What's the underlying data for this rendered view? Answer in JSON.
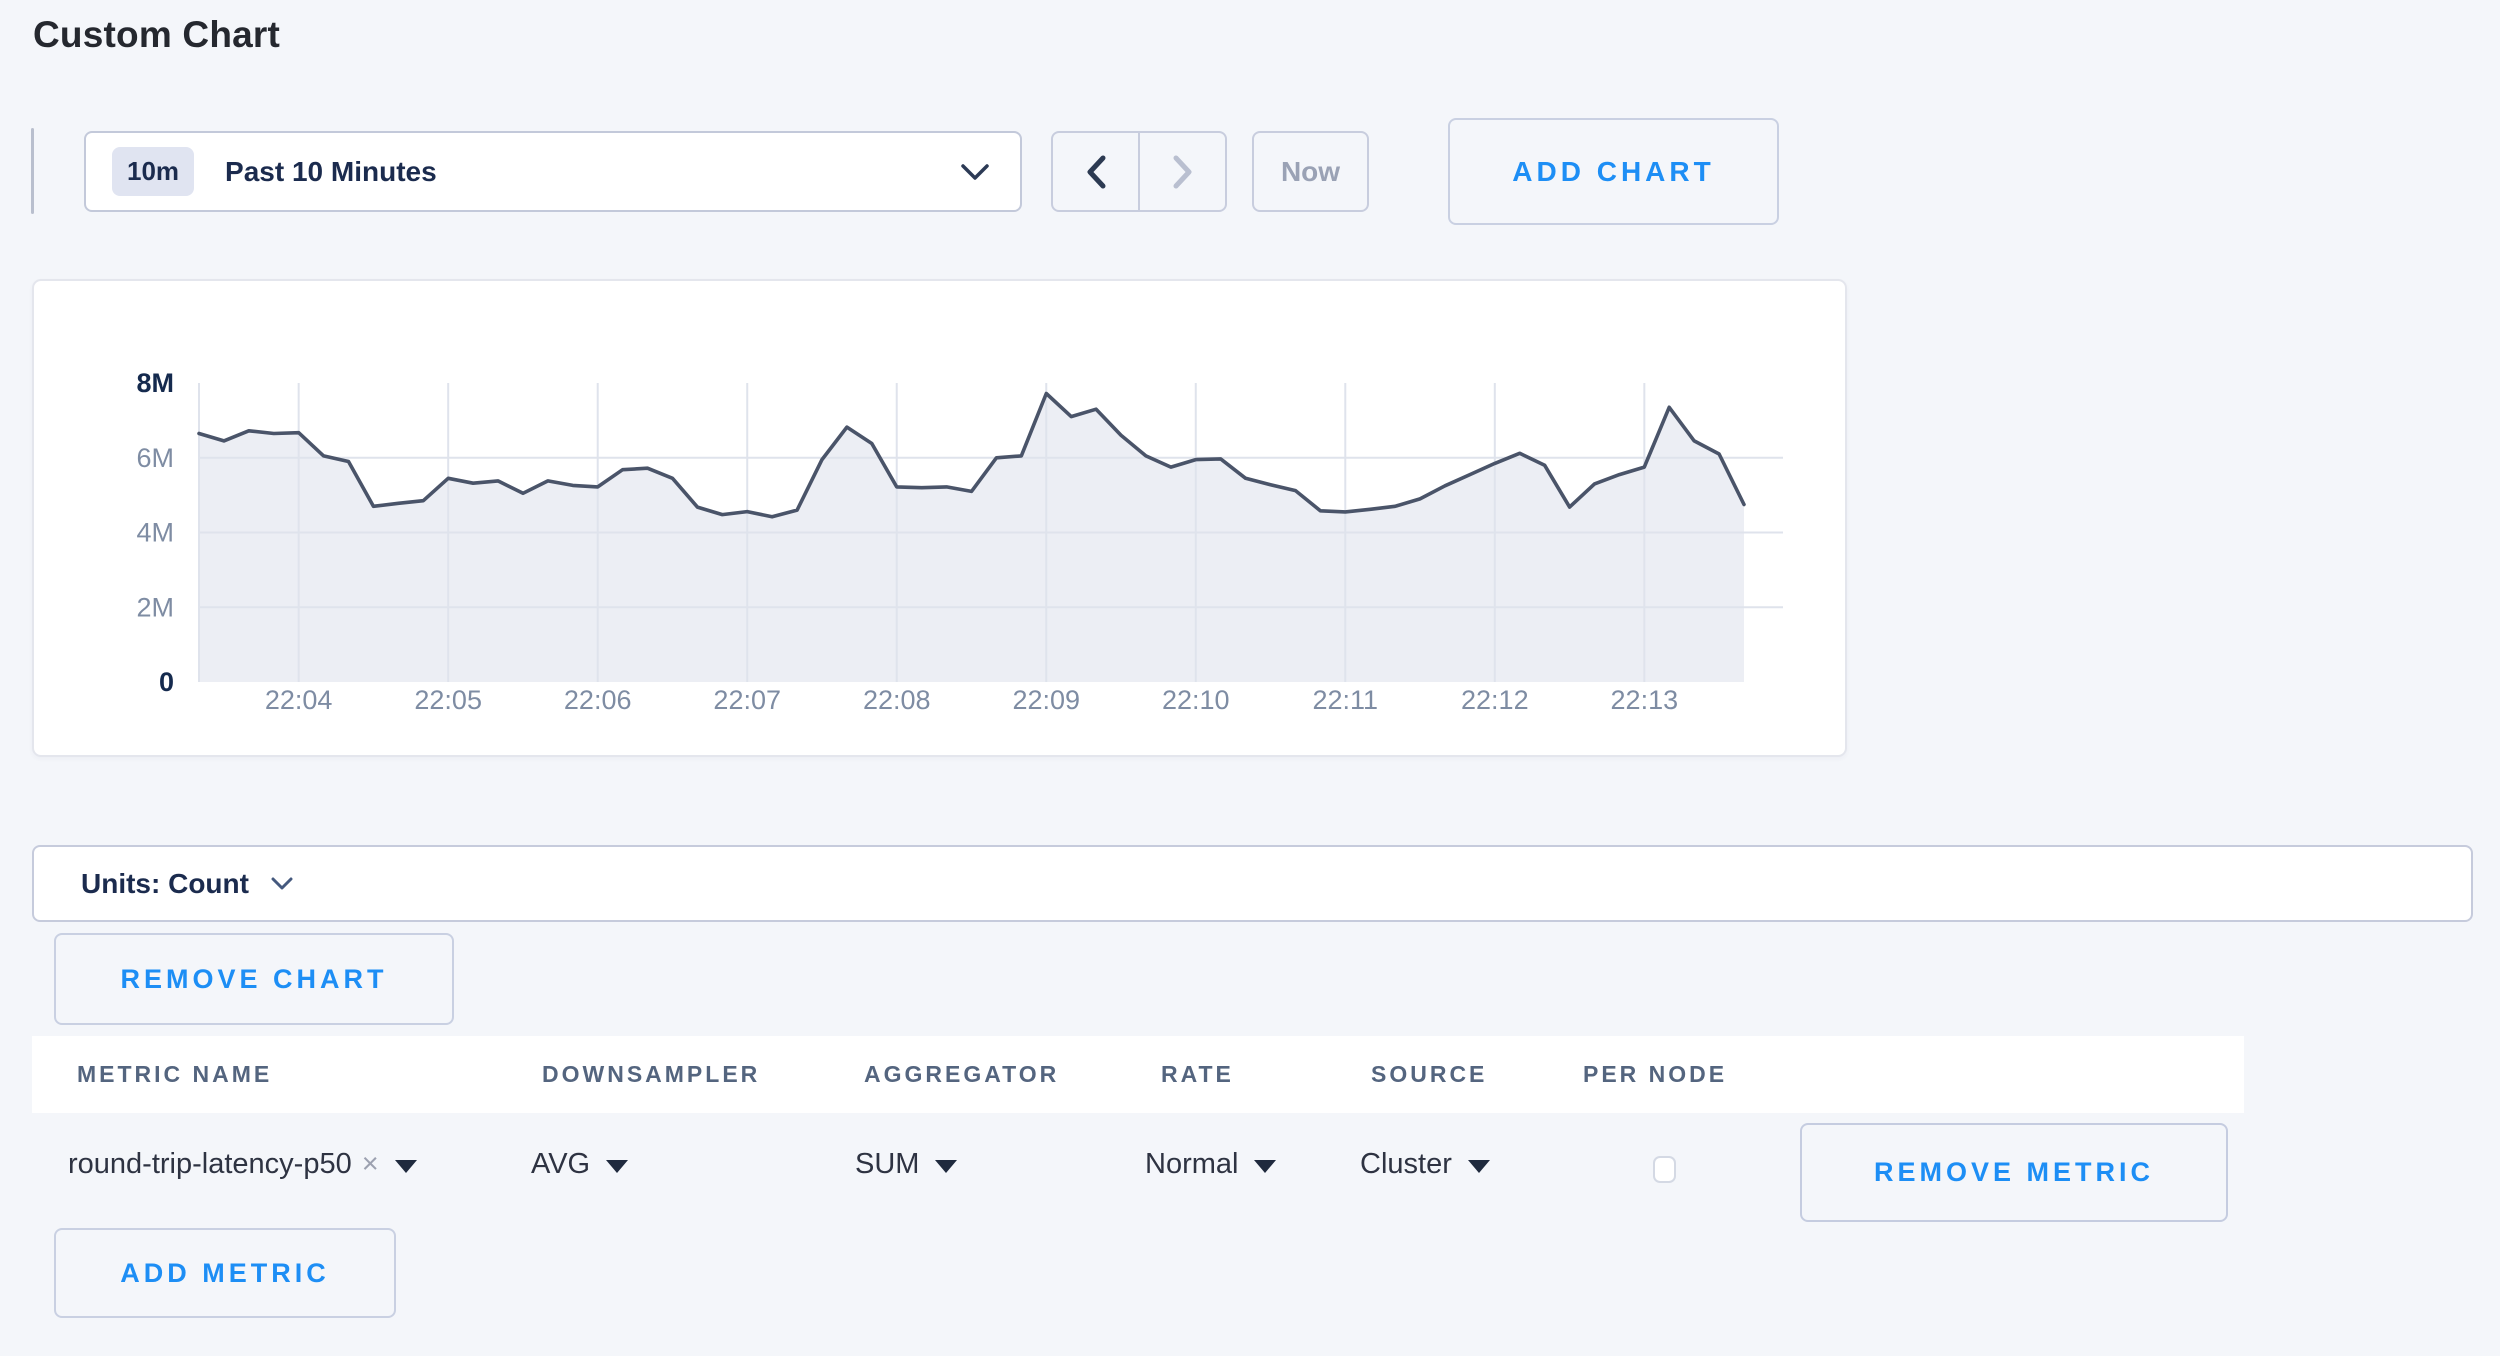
{
  "page": {
    "title": "Custom Chart"
  },
  "toolbar": {
    "time_range_badge": "10m",
    "time_range_label": "Past 10 Minutes",
    "now_label": "Now",
    "add_chart_label": "ADD CHART"
  },
  "chart_data": {
    "type": "area",
    "title": "",
    "x_start": "22:03:20",
    "x_interval_seconds": 10,
    "x_tick_labels": [
      "22:04",
      "22:05",
      "22:06",
      "22:07",
      "22:08",
      "22:09",
      "22:10",
      "22:11",
      "22:12",
      "22:13"
    ],
    "y_tick_labels": [
      "0",
      "2M",
      "4M",
      "6M",
      "8M"
    ],
    "y_tick_values_millions": [
      0,
      2,
      4,
      6,
      8
    ],
    "ylim": [
      0,
      8000000
    ],
    "grid": true,
    "legend": false,
    "series": [
      {
        "name": "round-trip-latency-p50",
        "unit": "count",
        "values_millions": [
          6.65,
          6.45,
          6.72,
          6.65,
          6.67,
          6.05,
          5.9,
          4.7,
          4.78,
          4.85,
          5.45,
          5.32,
          5.38,
          5.05,
          5.38,
          5.26,
          5.22,
          5.68,
          5.72,
          5.45,
          4.68,
          4.48,
          4.56,
          4.42,
          4.6,
          5.95,
          6.82,
          6.38,
          5.22,
          5.2,
          5.22,
          5.1,
          6.0,
          6.05,
          7.72,
          7.1,
          7.3,
          6.6,
          6.05,
          5.75,
          5.95,
          5.97,
          5.45,
          5.28,
          5.12,
          4.58,
          4.55,
          4.62,
          4.7,
          4.9,
          5.25,
          5.55,
          5.85,
          6.12,
          5.8,
          4.68,
          5.3,
          5.55,
          5.75,
          7.35,
          6.45,
          6.1,
          4.75
        ]
      }
    ]
  },
  "units_selector": {
    "label": "Units: Count"
  },
  "remove_chart_label": "REMOVE CHART",
  "metrics_table": {
    "headers": [
      "METRIC NAME",
      "DOWNSAMPLER",
      "AGGREGATOR",
      "RATE",
      "SOURCE",
      "PER NODE"
    ],
    "rows": [
      {
        "metric_name": "round-trip-latency-p50",
        "remove_tag": "×",
        "downsampler": "AVG",
        "aggregator": "SUM",
        "rate": "Normal",
        "source": "Cluster",
        "per_node_checked": false,
        "remove_metric_label": "REMOVE METRIC"
      }
    ],
    "add_metric_label": "ADD METRIC"
  },
  "colors": {
    "accent_blue": "#1d8ef5",
    "chart_line": "#4a5469",
    "chart_fill": "#e9ecf3",
    "grid_line": "#dfe3ec",
    "navy_text": "#152a4e",
    "muted_tick": "#7e8ca3",
    "page_background": "#f4f6fa"
  }
}
